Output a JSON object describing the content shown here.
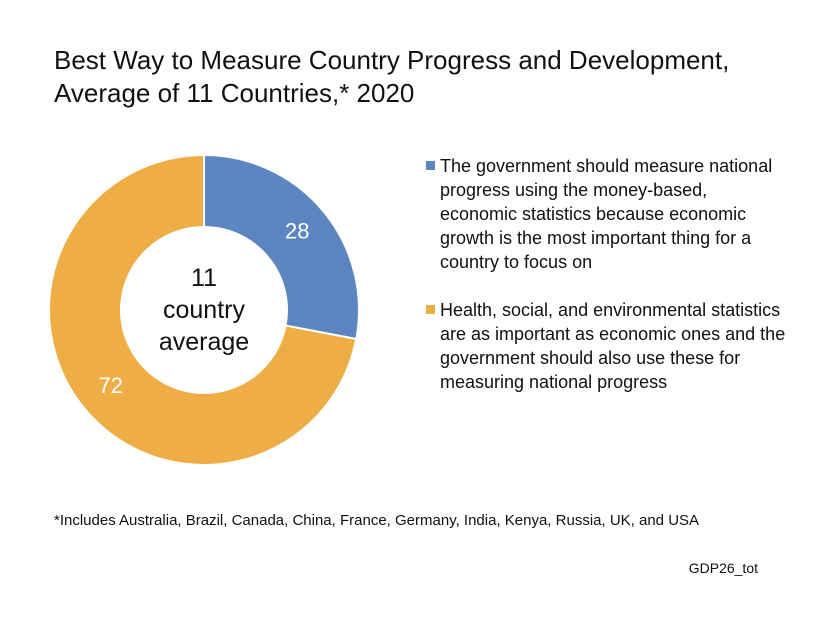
{
  "title": "Best Way to Measure Country Progress and Development,\nAverage of 11 Countries,* 2020",
  "center_label": "11\ncountry\naverage",
  "legend": [
    {
      "label": "The government should measure national progress using the money-based, economic statistics because economic growth is the most important thing for a country to focus on",
      "color": "#5B86C2"
    },
    {
      "label": "Health, social, and environmental statistics are as important as economic ones and the government should also use these for measuring national progress",
      "color": "#EFAD45"
    }
  ],
  "footnote": "*Includes Australia, Brazil, Canada, China, France, Germany, India, Kenya, Russia, UK, and USA",
  "source_code": "GDP26_tot",
  "chart_data": {
    "type": "pie",
    "donut": true,
    "title": "Best Way to Measure Country Progress and Development, Average of 11 Countries,* 2020",
    "categories": [
      "The government should measure national progress using the money-based, economic statistics because economic growth is the most important thing for a country to focus on",
      "Health, social, and environmental statistics are as important as economic ones and the government should also use these for measuring national progress"
    ],
    "values": [
      28,
      72
    ],
    "data_labels": [
      "28",
      "72"
    ],
    "colors": [
      "#5B86C2",
      "#EFAD45"
    ],
    "start_angle_deg": 0,
    "legend_position": "right"
  }
}
